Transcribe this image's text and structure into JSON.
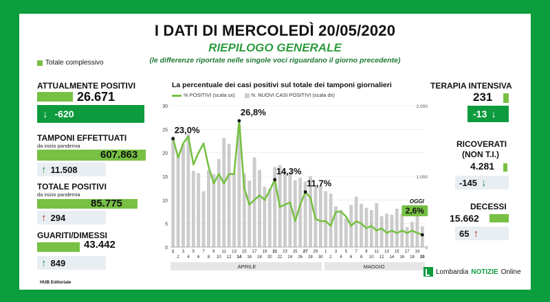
{
  "header": {
    "title": "I DATI DI MERCOLEDÌ 20/05/2020",
    "subtitle": "RIEPILOGO GENERALE",
    "note": "(le differenze riportate nelle singole voci riguardano il giorno precedente)",
    "legend_total": "Totale complessivo"
  },
  "left": {
    "attualmente_positivi": {
      "label": "ATTUALMENTE POSITIVI",
      "value": "26.671",
      "delta": "-620",
      "delta_direction": "down",
      "bar_fraction": 0.7
    },
    "tamponi": {
      "label": "TAMPONI EFFETTUATI",
      "sub": "da inizio pandemia",
      "value": "607.863",
      "delta": "11.508",
      "delta_direction": "up",
      "bar_fraction": 1.0
    },
    "totale_positivi": {
      "label": "TOTALE POSITIVI",
      "sub": "da inizio pandemia",
      "value": "85.775",
      "delta": "294",
      "delta_direction": "up",
      "bar_fraction": 0.9
    },
    "guariti": {
      "label": "GUARITI/DIMESSI",
      "value": "43.442",
      "delta": "849",
      "delta_direction": "up",
      "bar_fraction": 0.55
    }
  },
  "right": {
    "terapia_intensiva": {
      "label": "TERAPIA INTENSIVA",
      "value": "231",
      "delta": "-13",
      "delta_direction": "down"
    },
    "ricoverati": {
      "label": "RICOVERATI",
      "label2": "(NON T.I.)",
      "value": "4.281",
      "delta": "-145",
      "delta_direction": "down"
    },
    "decessi": {
      "label": "DECESSI",
      "value": "15.662",
      "delta": "65",
      "delta_direction": "up"
    }
  },
  "footer": {
    "credit": "HUB Editoriale",
    "brand_a": "Lombardia",
    "brand_b": "NOTIZIE",
    "brand_c": "Online"
  },
  "colors": {
    "frame": "#0c9d3c",
    "accent": "#77c043",
    "dark_green": "#0e9b3e",
    "bars": "#cccccc",
    "red": "#b22222"
  },
  "chart_data": {
    "type": "line",
    "title": "La percentuale dei casi positivi sul totale dei tamponi giornalieri",
    "series_names": {
      "line": "% POSITIVI (scala sx)",
      "bars": "N. NUOVI CASI POSITIVI (scala dx)"
    },
    "x_tick_labels": [
      "1",
      "2",
      "3",
      "4",
      "5",
      "6",
      "7",
      "8",
      "9",
      "10",
      "11",
      "12",
      "13",
      "14",
      "15",
      "16",
      "17",
      "18",
      "19",
      "20",
      "21",
      "22",
      "23",
      "24",
      "25",
      "26",
      "27",
      "28",
      "29",
      "30",
      "1",
      "2",
      "3",
      "4",
      "5",
      "6",
      "7",
      "8",
      "9",
      "10",
      "11",
      "12",
      "13",
      "14",
      "15",
      "16",
      "17",
      "18",
      "19",
      "20"
    ],
    "bold_ticks": [
      "1",
      "14",
      "21",
      "27",
      "20"
    ],
    "months": [
      "APRILE",
      "MAGGIO"
    ],
    "left_axis": {
      "ticks": [
        0,
        5,
        10,
        15,
        20,
        25,
        30
      ],
      "ylim": [
        0,
        30
      ]
    },
    "right_axis": {
      "ticks": [
        "0",
        "1.000",
        "2.000"
      ],
      "ylim": [
        0,
        2000
      ]
    },
    "percent_positive": [
      23.0,
      19,
      22,
      23.5,
      17.5,
      20,
      22,
      17,
      13.5,
      15.5,
      13.5,
      15.5,
      15.5,
      26.8,
      12.5,
      9,
      10,
      11,
      10,
      12,
      14.3,
      8.5,
      9,
      9.5,
      5.5,
      9,
      11.7,
      10.5,
      6,
      5.5,
      5.5,
      4.5,
      7.5,
      7.5,
      6.5,
      4.5,
      5.5,
      5,
      4,
      4.5,
      3.5,
      4,
      3,
      3.5,
      3,
      3.5,
      3,
      3.5,
      3,
      2.6
    ],
    "new_cases": [
      1565,
      1292,
      1455,
      1598,
      1079,
      1046,
      791,
      1089,
      1033,
      1246,
      1544,
      1460,
      1051,
      1721,
      1039,
      941,
      1267,
      1091,
      855,
      827,
      1134,
      1161,
      1078,
      1059,
      947,
      980,
      925,
      1003,
      866,
      870,
      792,
      756,
      575,
      526,
      410,
      595,
      714,
      613,
      556,
      523,
      621,
      436,
      473,
      459,
      543,
      468,
      282,
      359,
      462,
      294
    ],
    "annotations": [
      {
        "label": "23,0%",
        "index": 0
      },
      {
        "label": "26,8%",
        "index": 13
      },
      {
        "label": "14,3%",
        "index": 20
      },
      {
        "label": "11,7%",
        "index": 26
      }
    ],
    "today": {
      "label": "OGGI",
      "value_label": "2,6%",
      "index": 49
    }
  }
}
